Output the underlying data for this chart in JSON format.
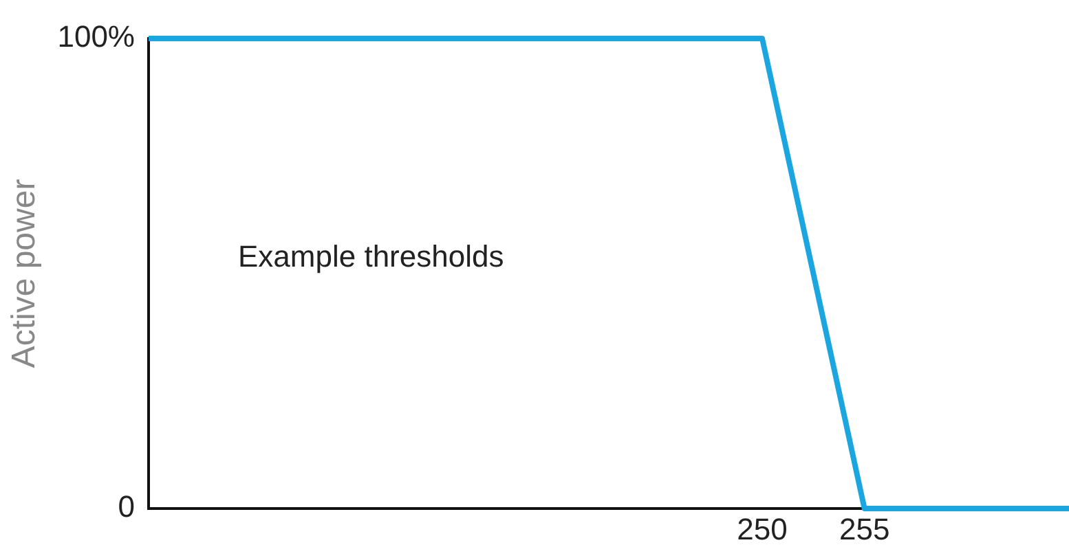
{
  "chart_data": {
    "type": "line",
    "ylabel": "Active power",
    "x": [
      220,
      250,
      255,
      265
    ],
    "series": [
      {
        "color": "#1ba6e0",
        "values": [
          100,
          100,
          0,
          0
        ]
      }
    ],
    "xlim": [
      220,
      265
    ],
    "xticks": [
      250,
      255
    ],
    "ylim": [
      0,
      100
    ],
    "yticks": [
      {
        "value": 0,
        "label": "0"
      },
      {
        "value": 100,
        "label": "100%"
      }
    ],
    "annotations": [
      "Example thresholds"
    ],
    "grid": false,
    "legend": false,
    "marker": "none",
    "line_style": "solid"
  }
}
